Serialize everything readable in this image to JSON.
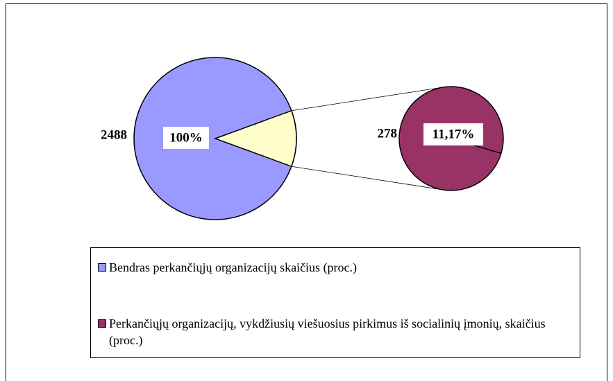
{
  "chart_data": {
    "type": "pie",
    "categories": [
      "Bendras perkančiųjų organizacijų skaičius (proc.)",
      "Perkančiųjų organizacijų, vykdžiusių viešuosius pirkimus iš socialinių įmonių, skaičius (proc.)"
    ],
    "values": [
      100,
      11.17
    ],
    "value_labels": [
      "100%",
      "11,17%"
    ],
    "counts": [
      2488,
      278
    ],
    "colors": [
      "#9999ff",
      "#993366"
    ],
    "split_color": "#ffffcc"
  }
}
